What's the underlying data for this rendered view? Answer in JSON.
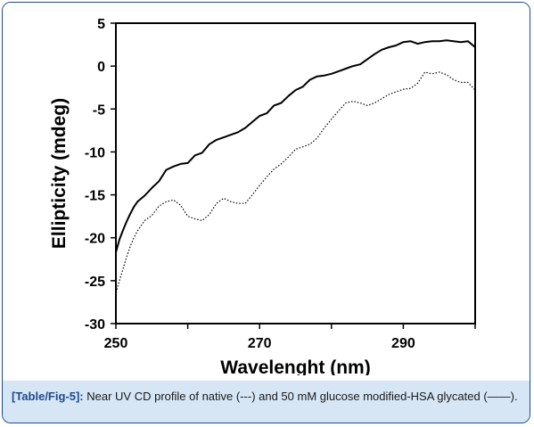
{
  "caption": {
    "label": "[Table/Fig-5]:",
    "text": " Near UV CD profile of native (---) and 50 mM glucose modified-HSA glycated (——)."
  },
  "chart_data": {
    "type": "line",
    "title": "",
    "xlabel": "Wavelenght (nm)",
    "ylabel": "Ellipticity (mdeg)",
    "xlim": [
      250,
      300
    ],
    "ylim": [
      -30,
      5
    ],
    "xticks": [
      250,
      270,
      290
    ],
    "yticks": [
      5,
      0,
      -5,
      -10,
      -15,
      -20,
      -25,
      -30
    ],
    "grid": false,
    "series": [
      {
        "style": "solid",
        "color": "#000000",
        "x": [
          250,
          250.5,
          251,
          251.5,
          252,
          252.5,
          253,
          254,
          255,
          256,
          257,
          258,
          259,
          260,
          261,
          262,
          263,
          264,
          265,
          266,
          267,
          268,
          269,
          270,
          271,
          272,
          273,
          274,
          275,
          276,
          277,
          278,
          279,
          280,
          281,
          282,
          283,
          284,
          285,
          286,
          287,
          288,
          289,
          290,
          291,
          292,
          293,
          294,
          295,
          296,
          297,
          298,
          299,
          300
        ],
        "y": [
          -21.7,
          -20.2,
          -19.1,
          -18.1,
          -17.2,
          -16.4,
          -15.8,
          -15.1,
          -14.2,
          -13.4,
          -12.1,
          -11.7,
          -11.4,
          -11.3,
          -10.4,
          -10.1,
          -9.1,
          -8.6,
          -8.3,
          -8.0,
          -7.7,
          -7.2,
          -6.5,
          -5.8,
          -5.5,
          -4.6,
          -4.3,
          -3.5,
          -2.8,
          -2.4,
          -1.6,
          -1.2,
          -1.1,
          -0.9,
          -0.6,
          -0.3,
          0.0,
          0.2,
          0.8,
          1.4,
          1.9,
          2.2,
          2.4,
          2.8,
          2.9,
          2.6,
          2.8,
          2.9,
          2.9,
          3.0,
          2.9,
          2.8,
          2.9,
          2.2
        ]
      },
      {
        "style": "dotted",
        "color": "#000000",
        "x": [
          250,
          250.5,
          251,
          251.5,
          252,
          252.5,
          253,
          254,
          255,
          256,
          257,
          258,
          259,
          260,
          261,
          262,
          263,
          264,
          265,
          266,
          267,
          268,
          269,
          270,
          271,
          272,
          273,
          274,
          275,
          276,
          277,
          278,
          279,
          280,
          281,
          282,
          283,
          284,
          285,
          286,
          287,
          288,
          289,
          290,
          291,
          292,
          293,
          294,
          295,
          296,
          297,
          298,
          299,
          300
        ],
        "y": [
          -26.4,
          -25.0,
          -23.6,
          -22.2,
          -21.0,
          -20.0,
          -19.2,
          -18.0,
          -17.4,
          -16.3,
          -15.8,
          -15.6,
          -16.2,
          -17.5,
          -17.8,
          -18.0,
          -17.3,
          -16.0,
          -15.4,
          -15.8,
          -16.0,
          -16.0,
          -15.0,
          -13.9,
          -12.9,
          -12.0,
          -11.4,
          -10.6,
          -9.7,
          -9.4,
          -9.1,
          -8.4,
          -7.2,
          -6.2,
          -5.2,
          -4.3,
          -4.1,
          -4.3,
          -4.6,
          -4.3,
          -3.8,
          -3.3,
          -3.0,
          -2.7,
          -2.6,
          -2.0,
          -0.7,
          -0.9,
          -0.7,
          -1.0,
          -1.6,
          -1.9,
          -1.9,
          -2.8
        ]
      }
    ]
  }
}
